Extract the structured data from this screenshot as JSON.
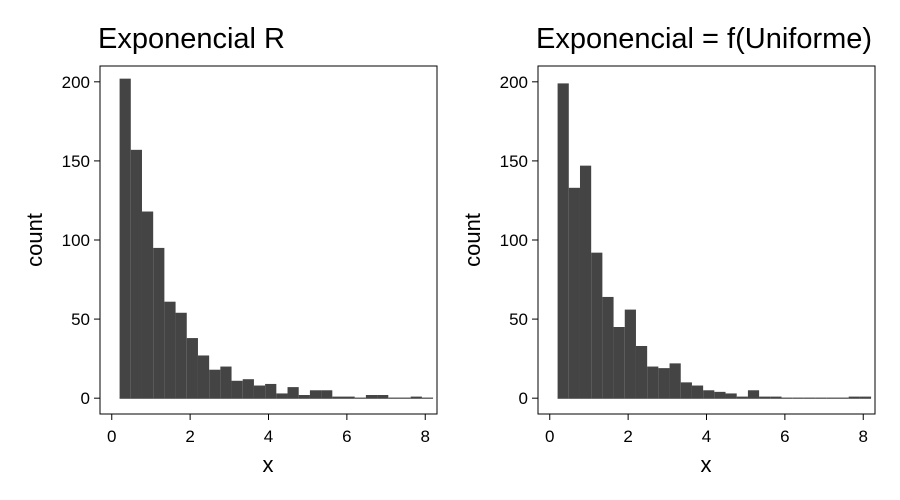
{
  "chart_data": [
    {
      "type": "bar",
      "title": "Exponencial R",
      "xlabel": "x",
      "ylabel": "count",
      "xlim": [
        -0.3,
        8.3
      ],
      "ylim": [
        -10,
        210
      ],
      "xticks": [
        0,
        2,
        4,
        6,
        8
      ],
      "yticks": [
        0,
        50,
        100,
        150,
        200
      ],
      "grid": false,
      "bar_color": "#444444",
      "bin_width": 0.2857,
      "bin_start": 0.2,
      "values": [
        202,
        157,
        118,
        95,
        61,
        54,
        38,
        27,
        18,
        20,
        11,
        12,
        8,
        9,
        3,
        7,
        2,
        5,
        5,
        1,
        1,
        0,
        2,
        2,
        0,
        0,
        1,
        0
      ]
    },
    {
      "type": "bar",
      "title": "Exponencial = f(Uniforme)",
      "xlabel": "x",
      "ylabel": "count",
      "xlim": [
        -0.3,
        8.3
      ],
      "ylim": [
        -10,
        210
      ],
      "xticks": [
        0,
        2,
        4,
        6,
        8
      ],
      "yticks": [
        0,
        50,
        100,
        150,
        200
      ],
      "grid": false,
      "bar_color": "#444444",
      "bin_width": 0.2857,
      "bin_start": 0.2,
      "values": [
        199,
        133,
        147,
        92,
        64,
        45,
        56,
        33,
        20,
        19,
        22,
        10,
        8,
        5,
        4,
        3,
        1,
        5,
        1,
        1,
        0,
        0,
        0,
        0,
        0,
        0,
        1,
        1
      ]
    }
  ]
}
